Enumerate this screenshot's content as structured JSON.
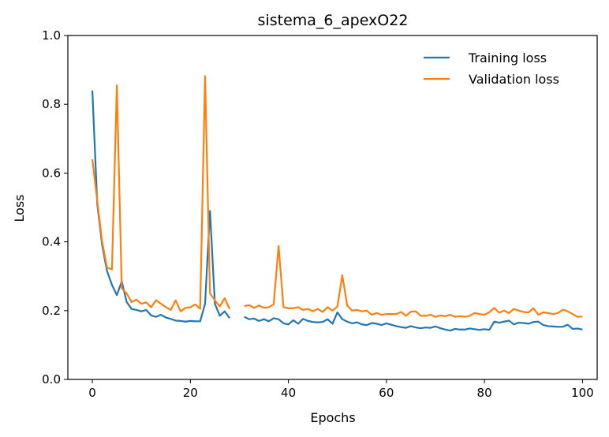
{
  "chart_data": {
    "type": "line",
    "title": "sistema_6_apexO22",
    "xlabel": "Epochs",
    "ylabel": "Loss",
    "xlim": [
      -5,
      103
    ],
    "ylim": [
      0,
      1.0
    ],
    "xticks": [
      0,
      20,
      40,
      60,
      80,
      100
    ],
    "yticks": [
      0.0,
      0.2,
      0.4,
      0.6,
      0.8,
      1.0
    ],
    "legend_position": "top-right",
    "grid": false,
    "series": [
      {
        "name": "Training loss",
        "color": "#1f77b4",
        "segments": [
          {
            "x_start": 0,
            "values": [
              0.84,
              0.51,
              0.39,
              0.315,
              0.275,
              0.245,
              0.285,
              0.225,
              0.205,
              0.202,
              0.198,
              0.202,
              0.186,
              0.182,
              0.188,
              0.18,
              0.176,
              0.171,
              0.17,
              0.168,
              0.17,
              0.169,
              0.169,
              0.22,
              0.49,
              0.22,
              0.185,
              0.198,
              0.178
            ]
          },
          {
            "x_start": 31,
            "values": [
              0.182,
              0.175,
              0.177,
              0.17,
              0.175,
              0.169,
              0.178,
              0.175,
              0.163,
              0.16,
              0.172,
              0.162,
              0.176,
              0.17,
              0.167,
              0.166,
              0.167,
              0.175,
              0.162,
              0.195,
              0.175,
              0.168,
              0.163,
              0.166,
              0.16,
              0.158,
              0.164,
              0.162,
              0.158,
              0.163,
              0.159,
              0.155,
              0.152,
              0.15,
              0.155,
              0.151,
              0.149,
              0.151,
              0.15,
              0.154,
              0.149,
              0.145,
              0.142,
              0.147,
              0.145,
              0.145,
              0.148,
              0.146,
              0.144,
              0.146,
              0.144,
              0.168,
              0.165,
              0.168,
              0.171,
              0.16,
              0.165,
              0.164,
              0.162,
              0.167,
              0.168,
              0.158,
              0.155,
              0.154,
              0.153,
              0.153,
              0.159,
              0.147,
              0.148,
              0.145
            ]
          }
        ]
      },
      {
        "name": "Validation loss",
        "color": "#ff7f0e",
        "segments": [
          {
            "x_start": 0,
            "values": [
              0.64,
              0.52,
              0.4,
              0.325,
              0.32,
              0.855,
              0.265,
              0.25,
              0.225,
              0.232,
              0.22,
              0.224,
              0.21,
              0.23,
              0.22,
              0.21,
              0.202,
              0.23,
              0.198,
              0.208,
              0.21,
              0.218,
              0.205,
              0.882,
              0.25,
              0.23,
              0.212,
              0.236,
              0.205
            ]
          },
          {
            "x_start": 31,
            "values": [
              0.213,
              0.216,
              0.208,
              0.215,
              0.208,
              0.21,
              0.218,
              0.388,
              0.21,
              0.207,
              0.207,
              0.21,
              0.202,
              0.205,
              0.198,
              0.205,
              0.196,
              0.21,
              0.2,
              0.212,
              0.303,
              0.215,
              0.2,
              0.202,
              0.198,
              0.2,
              0.188,
              0.193,
              0.188,
              0.19,
              0.19,
              0.19,
              0.196,
              0.185,
              0.197,
              0.198,
              0.185,
              0.185,
              0.188,
              0.182,
              0.186,
              0.184,
              0.188,
              0.182,
              0.184,
              0.182,
              0.185,
              0.193,
              0.19,
              0.188,
              0.195,
              0.208,
              0.194,
              0.2,
              0.193,
              0.205,
              0.2,
              0.196,
              0.195,
              0.207,
              0.188,
              0.195,
              0.193,
              0.19,
              0.193,
              0.203,
              0.198,
              0.19,
              0.182,
              0.183
            ]
          }
        ]
      }
    ]
  }
}
